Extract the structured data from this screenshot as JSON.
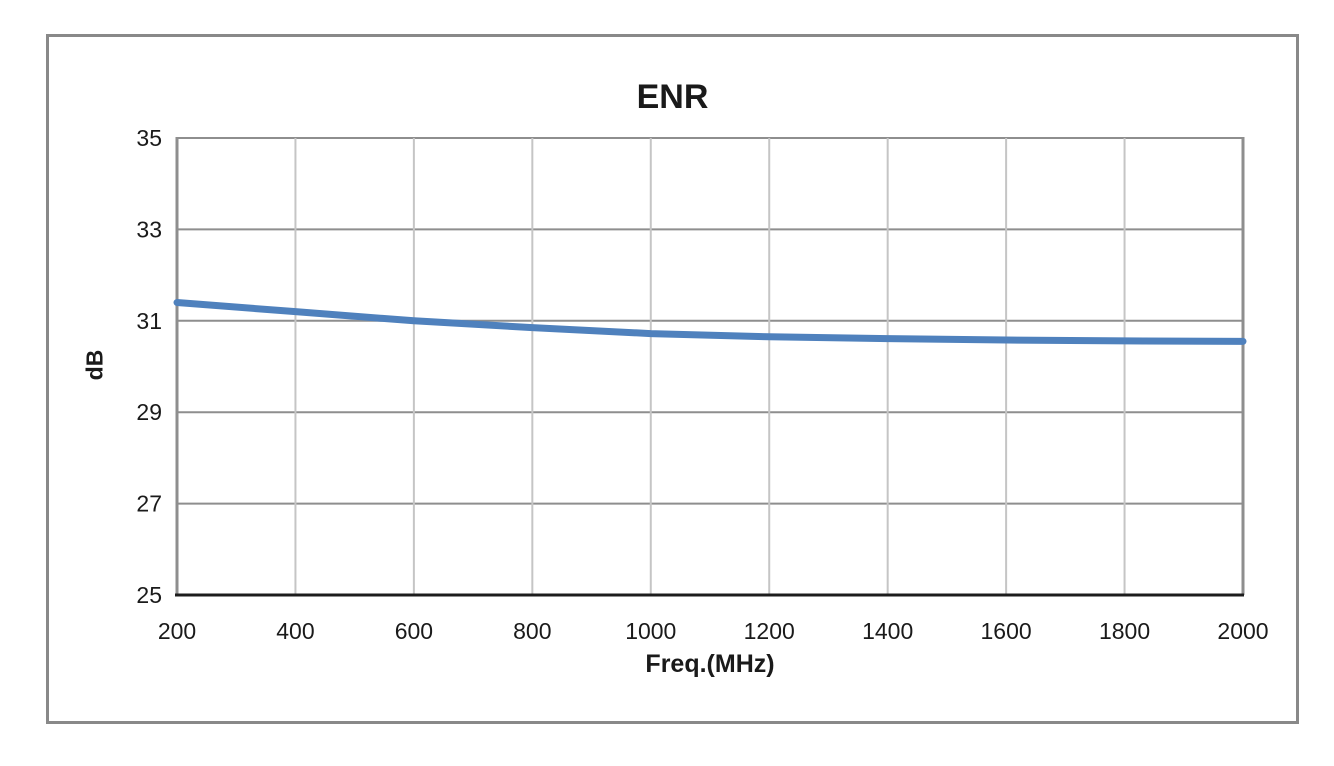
{
  "figure": {
    "background_color": "#ffffff",
    "border_color": "#898989"
  },
  "chart_data": {
    "type": "line",
    "title": "ENR",
    "xlabel": "Freq.(MHz)",
    "ylabel": "dB",
    "x": [
      200,
      400,
      600,
      800,
      1000,
      1200,
      1400,
      1600,
      1800,
      2000
    ],
    "series": [
      {
        "name": "ENR",
        "color": "#4F81BD",
        "values": [
          31.4,
          31.2,
          31.0,
          30.85,
          30.72,
          30.65,
          30.61,
          30.58,
          30.56,
          30.55
        ]
      }
    ],
    "xlim": [
      200,
      2000
    ],
    "ylim": [
      25,
      35
    ],
    "xticks": [
      200,
      400,
      600,
      800,
      1000,
      1200,
      1400,
      1600,
      1800,
      2000
    ],
    "yticks": [
      25,
      27,
      29,
      31,
      33,
      35
    ],
    "grid": true,
    "legend_position": "none",
    "styles": {
      "h_grid_color": "#8e8e8e",
      "v_grid_color": "#c5c5c5",
      "left_axis_color": "#8e8e8e",
      "right_border_color": "#8e8e8e",
      "bottom_axis_color": "#1d1d1d",
      "line_width": 7,
      "h_grid_width": 2,
      "v_grid_width": 2,
      "axis_width": 3
    }
  }
}
